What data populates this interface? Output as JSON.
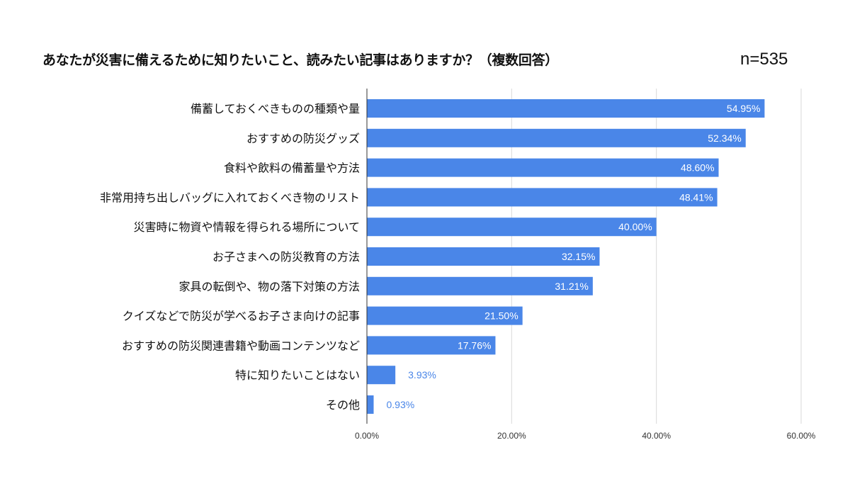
{
  "chart_data": {
    "type": "bar",
    "orientation": "horizontal",
    "title": "あなたが災害に備えるために知りたいこと、読みたい記事はありますか？（複数回答）",
    "annotation": "n=535",
    "categories": [
      "備蓄しておくべきものの種類や量",
      "おすすめの防災グッズ",
      "食料や飲料の備蓄量や方法",
      "非常用持ち出しバッグに入れておくべき物のリスト",
      "災害時に物資や情報を得られる場所について",
      "お子さまへの防災教育の方法",
      "家具の転倒や、物の落下対策の方法",
      "クイズなどで防災が学べるお子さま向けの記事",
      "おすすめの防災関連書籍や動画コンテンツなど",
      "特に知りたいことはない",
      "その他"
    ],
    "values": [
      54.95,
      52.34,
      48.6,
      48.41,
      40.0,
      32.15,
      31.21,
      21.5,
      17.76,
      3.93,
      0.93
    ],
    "data_labels": [
      "54.95%",
      "52.34%",
      "48.60%",
      "48.41%",
      "40.00%",
      "32.15%",
      "31.21%",
      "21.50%",
      "17.76%",
      "3.93%",
      "0.93%"
    ],
    "xlim": [
      0,
      60
    ],
    "x_ticks": [
      0,
      20,
      40,
      60
    ],
    "x_tick_labels": [
      "0.00%",
      "20.00%",
      "40.00%",
      "60.00%"
    ],
    "xlabel": "",
    "ylabel": "",
    "grid": true,
    "legend": "none",
    "colors": {
      "bar": "#4a86e8",
      "label_inside": "#ffffff",
      "label_outside": "#4a86e8"
    }
  }
}
